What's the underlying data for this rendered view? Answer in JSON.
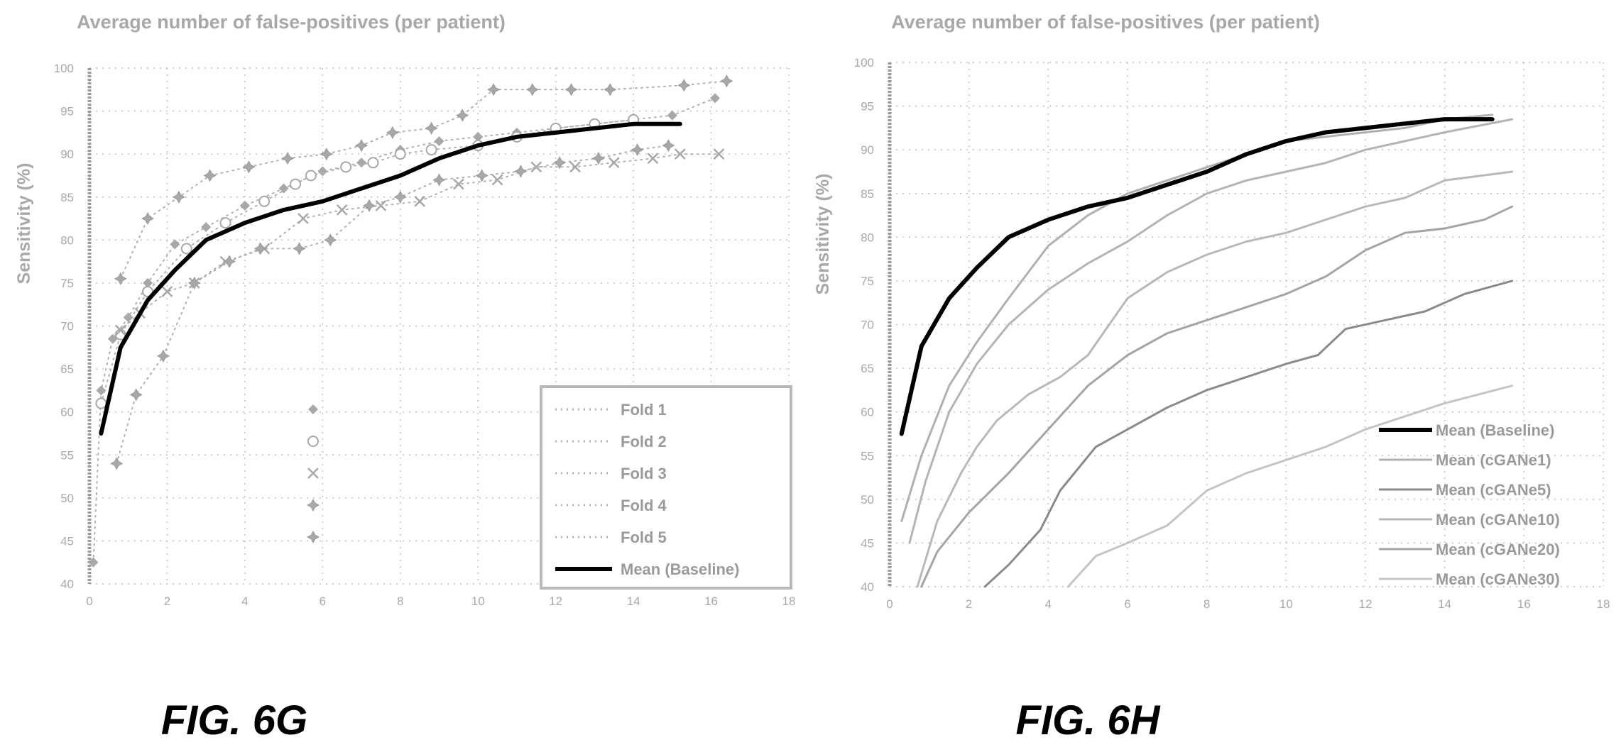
{
  "chart_data": [
    {
      "id": "fig-6g",
      "type": "line",
      "caption": "FIG. 6G",
      "title": "Average number of false-positives (per patient)",
      "xlabel": "",
      "ylabel": "Sensitivity (%)",
      "xlim": [
        0,
        18
      ],
      "ylim": [
        40,
        100
      ],
      "xticks": [
        0,
        2,
        4,
        6,
        8,
        10,
        12,
        14,
        16,
        18
      ],
      "yticks": [
        40,
        45,
        50,
        55,
        60,
        65,
        70,
        75,
        80,
        85,
        90,
        95,
        100
      ],
      "grid": "dotted",
      "legend_position": "bottom-right",
      "series": [
        {
          "name": "Fold 1",
          "marker": "diamond",
          "line": "dotted",
          "points": [
            [
              0.1,
              42.5
            ],
            [
              0.3,
              62.5
            ],
            [
              0.6,
              68.5
            ],
            [
              1.0,
              71.0
            ],
            [
              1.5,
              75.0
            ],
            [
              2.2,
              79.5
            ],
            [
              3.0,
              81.5
            ],
            [
              4.0,
              84.0
            ],
            [
              5.0,
              86.0
            ],
            [
              6.0,
              88.0
            ],
            [
              7.0,
              89.0
            ],
            [
              8.0,
              90.5
            ],
            [
              9.0,
              91.5
            ],
            [
              10.0,
              92.0
            ],
            [
              11.0,
              92.5
            ],
            [
              12.0,
              93.0
            ],
            [
              13.0,
              93.5
            ],
            [
              14.0,
              94.0
            ],
            [
              15.0,
              94.5
            ],
            [
              16.1,
              96.5
            ]
          ]
        },
        {
          "name": "Fold 2",
          "marker": "circle",
          "line": "dotted",
          "points": [
            [
              0.3,
              61.0
            ],
            [
              0.8,
              69.0
            ],
            [
              1.5,
              74.0
            ],
            [
              2.5,
              79.0
            ],
            [
              3.5,
              82.0
            ],
            [
              4.5,
              84.5
            ],
            [
              5.3,
              86.5
            ],
            [
              5.7,
              87.5
            ],
            [
              6.6,
              88.5
            ],
            [
              7.3,
              89.0
            ],
            [
              8.0,
              90.0
            ],
            [
              8.8,
              90.5
            ],
            [
              10.0,
              91.0
            ],
            [
              11.0,
              92.0
            ],
            [
              12.0,
              93.0
            ],
            [
              13.0,
              93.5
            ],
            [
              14.0,
              94.0
            ]
          ]
        },
        {
          "name": "Fold 3",
          "marker": "x",
          "line": "dotted",
          "points": [
            [
              0.8,
              69.5
            ],
            [
              1.3,
              71.5
            ],
            [
              2.0,
              74.0
            ],
            [
              2.7,
              75.0
            ],
            [
              3.5,
              77.5
            ],
            [
              4.5,
              79.0
            ],
            [
              5.5,
              82.5
            ],
            [
              6.5,
              83.5
            ],
            [
              7.5,
              84.0
            ],
            [
              8.5,
              84.5
            ],
            [
              9.5,
              86.5
            ],
            [
              10.5,
              87.0
            ],
            [
              11.5,
              88.5
            ],
            [
              12.5,
              88.5
            ],
            [
              13.5,
              89.0
            ],
            [
              14.5,
              89.5
            ],
            [
              15.2,
              90.0
            ],
            [
              16.2,
              90.0
            ]
          ]
        },
        {
          "name": "Fold 4",
          "marker": "star",
          "line": "dotted",
          "points": [
            [
              0.8,
              75.5
            ],
            [
              1.5,
              82.5
            ],
            [
              2.3,
              85.0
            ],
            [
              3.1,
              87.5
            ],
            [
              4.1,
              88.5
            ],
            [
              5.1,
              89.5
            ],
            [
              6.1,
              90.0
            ],
            [
              7.0,
              91.0
            ],
            [
              7.8,
              92.5
            ],
            [
              8.8,
              93.0
            ],
            [
              9.6,
              94.5
            ],
            [
              10.4,
              97.5
            ],
            [
              11.4,
              97.5
            ],
            [
              12.4,
              97.5
            ],
            [
              13.4,
              97.5
            ],
            [
              15.3,
              98.0
            ],
            [
              16.4,
              98.5
            ]
          ]
        },
        {
          "name": "Fold 5",
          "marker": "star",
          "line": "dotted",
          "points": [
            [
              0.7,
              54.0
            ],
            [
              1.2,
              62.0
            ],
            [
              1.9,
              66.5
            ],
            [
              2.7,
              75.0
            ],
            [
              3.6,
              77.5
            ],
            [
              4.4,
              79.0
            ],
            [
              5.4,
              79.0
            ],
            [
              6.2,
              80.0
            ],
            [
              7.2,
              84.0
            ],
            [
              8.0,
              85.0
            ],
            [
              9.0,
              87.0
            ],
            [
              10.1,
              87.5
            ],
            [
              11.1,
              88.0
            ],
            [
              12.1,
              89.0
            ],
            [
              13.1,
              89.5
            ],
            [
              14.1,
              90.5
            ],
            [
              14.9,
              91.0
            ]
          ]
        },
        {
          "name": "Mean (Baseline)",
          "marker": "none",
          "line": "solid",
          "emphasis": true,
          "points": [
            [
              0.3,
              57.5
            ],
            [
              0.8,
              67.5
            ],
            [
              1.5,
              73.0
            ],
            [
              2.2,
              76.5
            ],
            [
              3.0,
              80.0
            ],
            [
              4.0,
              82.0
            ],
            [
              5.0,
              83.5
            ],
            [
              6.0,
              84.5
            ],
            [
              7.0,
              86.0
            ],
            [
              8.0,
              87.5
            ],
            [
              9.0,
              89.5
            ],
            [
              10.0,
              91.0
            ],
            [
              11.0,
              92.0
            ],
            [
              12.0,
              92.5
            ],
            [
              13.0,
              93.0
            ],
            [
              14.0,
              93.5
            ],
            [
              15.2,
              93.5
            ]
          ]
        }
      ]
    },
    {
      "id": "fig-6h",
      "type": "line",
      "caption": "FIG. 6H",
      "title": "Average number of false-positives (per patient)",
      "xlabel": "",
      "ylabel": "Sensitivity (%)",
      "xlim": [
        0,
        18
      ],
      "ylim": [
        40,
        100
      ],
      "xticks": [
        0,
        2,
        4,
        6,
        8,
        10,
        12,
        14,
        16,
        18
      ],
      "yticks": [
        40,
        45,
        50,
        55,
        60,
        65,
        70,
        75,
        80,
        85,
        90,
        95,
        100
      ],
      "grid": "dotted",
      "legend_position": "bottom-right",
      "series": [
        {
          "name": "Mean (Baseline)",
          "line": "solid",
          "emphasis": true,
          "color": "#000000",
          "points": [
            [
              0.3,
              57.5
            ],
            [
              0.8,
              67.5
            ],
            [
              1.5,
              73.0
            ],
            [
              2.2,
              76.5
            ],
            [
              3.0,
              80.0
            ],
            [
              4.0,
              82.0
            ],
            [
              5.0,
              83.5
            ],
            [
              6.0,
              84.5
            ],
            [
              7.0,
              86.0
            ],
            [
              8.0,
              87.5
            ],
            [
              9.0,
              89.5
            ],
            [
              10.0,
              91.0
            ],
            [
              11.0,
              92.0
            ],
            [
              12.0,
              92.5
            ],
            [
              13.0,
              93.0
            ],
            [
              14.0,
              93.5
            ],
            [
              15.2,
              93.5
            ]
          ]
        },
        {
          "name": "Mean (cGANe1)",
          "line": "solid",
          "color": "#b0b0b0",
          "points": [
            [
              0.3,
              47.5
            ],
            [
              0.8,
              55.0
            ],
            [
              1.5,
              63.0
            ],
            [
              2.2,
              68.0
            ],
            [
              3.0,
              73.0
            ],
            [
              4.0,
              79.0
            ],
            [
              5.0,
              82.5
            ],
            [
              6.0,
              85.0
            ],
            [
              7.0,
              86.5
            ],
            [
              8.0,
              88.0
            ],
            [
              9.0,
              89.5
            ],
            [
              10.0,
              91.0
            ],
            [
              11.0,
              91.5
            ],
            [
              12.0,
              92.0
            ],
            [
              13.0,
              92.5
            ],
            [
              14.0,
              93.5
            ],
            [
              15.2,
              94.0
            ]
          ]
        },
        {
          "name": "Mean (cGANe5)",
          "line": "solid",
          "color": "#8a8a8a",
          "points": [
            [
              2.4,
              40.0
            ],
            [
              3.0,
              42.5
            ],
            [
              3.8,
              46.5
            ],
            [
              4.3,
              51.0
            ],
            [
              5.2,
              56.0
            ],
            [
              6.0,
              58.0
            ],
            [
              7.0,
              60.5
            ],
            [
              8.0,
              62.5
            ],
            [
              9.0,
              64.0
            ],
            [
              10.0,
              65.5
            ],
            [
              10.8,
              66.5
            ],
            [
              11.5,
              69.5
            ],
            [
              12.5,
              70.5
            ],
            [
              13.5,
              71.5
            ],
            [
              14.5,
              73.5
            ],
            [
              15.7,
              75.0
            ]
          ]
        },
        {
          "name": "Mean (cGANe10)",
          "line": "solid",
          "color": "#b8b8b8",
          "points": [
            [
              0.7,
              40.0
            ],
            [
              1.2,
              47.5
            ],
            [
              1.8,
              53.0
            ],
            [
              2.2,
              56.0
            ],
            [
              2.7,
              59.0
            ],
            [
              3.5,
              62.0
            ],
            [
              4.3,
              64.0
            ],
            [
              5.0,
              66.5
            ],
            [
              6.0,
              73.0
            ],
            [
              7.0,
              76.0
            ],
            [
              8.0,
              78.0
            ],
            [
              9.0,
              79.5
            ],
            [
              10.0,
              80.5
            ],
            [
              11.0,
              82.0
            ],
            [
              12.0,
              83.5
            ],
            [
              13.0,
              84.5
            ],
            [
              14.0,
              86.5
            ],
            [
              15.7,
              87.5
            ]
          ]
        },
        {
          "name": "Mean (cGANe20)",
          "line": "solid",
          "color": "#a4a4a4",
          "points": [
            [
              0.8,
              40.0
            ],
            [
              1.2,
              44.0
            ],
            [
              2.0,
              48.5
            ],
            [
              3.0,
              53.0
            ],
            [
              4.0,
              58.0
            ],
            [
              5.0,
              63.0
            ],
            [
              6.0,
              66.5
            ],
            [
              7.0,
              69.0
            ],
            [
              8.0,
              70.5
            ],
            [
              9.0,
              72.0
            ],
            [
              10.0,
              73.5
            ],
            [
              11.0,
              75.5
            ],
            [
              12.0,
              78.5
            ],
            [
              13.0,
              80.5
            ],
            [
              14.0,
              81.0
            ],
            [
              15.0,
              82.0
            ],
            [
              15.7,
              83.5
            ]
          ]
        },
        {
          "name": "Mean (cGANe30)",
          "line": "solid",
          "color": "#c4c4c4",
          "points": [
            [
              4.5,
              40.0
            ],
            [
              5.2,
              43.5
            ],
            [
              6.0,
              45.0
            ],
            [
              7.0,
              47.0
            ],
            [
              8.0,
              51.0
            ],
            [
              9.0,
              53.0
            ],
            [
              10.0,
              54.5
            ],
            [
              11.0,
              56.0
            ],
            [
              12.0,
              58.0
            ],
            [
              13.0,
              59.5
            ],
            [
              14.0,
              61.0
            ],
            [
              15.7,
              63.0
            ]
          ]
        },
        {
          "name": "",
          "line": "solid",
          "color": "#b4b4b4",
          "points": [
            [
              0.5,
              45.0
            ],
            [
              0.9,
              52.0
            ],
            [
              1.5,
              60.0
            ],
            [
              2.2,
              65.5
            ],
            [
              3.0,
              70.0
            ],
            [
              4.0,
              74.0
            ],
            [
              5.0,
              77.0
            ],
            [
              6.0,
              79.5
            ],
            [
              7.0,
              82.5
            ],
            [
              8.0,
              85.0
            ],
            [
              9.0,
              86.5
            ],
            [
              10.0,
              87.5
            ],
            [
              11.0,
              88.5
            ],
            [
              12.0,
              90.0
            ],
            [
              13.0,
              91.0
            ],
            [
              14.0,
              92.0
            ],
            [
              15.7,
              93.5
            ]
          ]
        }
      ]
    }
  ]
}
